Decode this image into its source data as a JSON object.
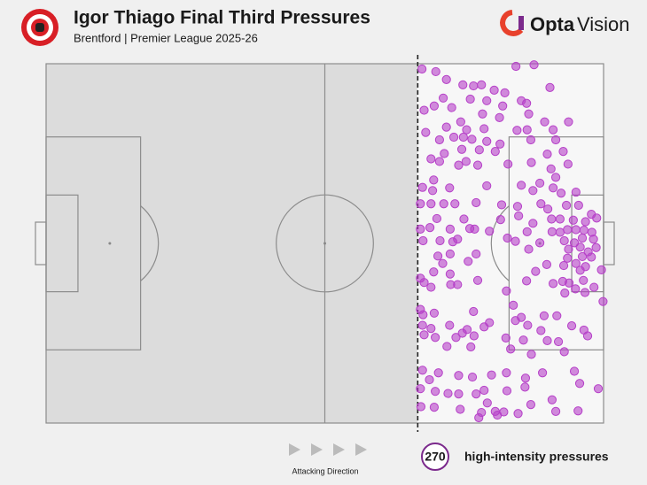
{
  "chart_data": {
    "type": "scatter",
    "title": "Igor Thiago Final Third Pressures",
    "subtitle": "Brentford | Premier League 2025-26",
    "brand": [
      "Opta",
      "Vision"
    ],
    "xlim": [
      0,
      105
    ],
    "ylim": [
      0,
      68
    ],
    "final_third_line": 70,
    "color": "#b640c8",
    "x": [
      70.8,
      73.4,
      88.5,
      91.9,
      75.4,
      78.5,
      80.5,
      82,
      84.4,
      86.4,
      94.9,
      74.8,
      79.9,
      83,
      89.5,
      90.5,
      73.1,
      71.2,
      76.4,
      86,
      78.1,
      82.2,
      85.4,
      90.9,
      98.4,
      93.9,
      75.4,
      79.2,
      82.5,
      88.7,
      90.6,
      95.5,
      71.5,
      74.1,
      76.8,
      78.6,
      80.2,
      83,
      85.5,
      91.3,
      96,
      78.3,
      81.6,
      84.6,
      94.4,
      97.4,
      98.3,
      72.5,
      74.1,
      75,
      77.7,
      79.1,
      81.3,
      87,
      91.4,
      95.1,
      73,
      70.9,
      72.8,
      76,
      83,
      89.5,
      93,
      96,
      95.5,
      91.7,
      97,
      99.8,
      70.5,
      72.5,
      74.9,
      77,
      81,
      85.8,
      88.8,
      93.2,
      94.5,
      98,
      100.3,
      102.7,
      73.6,
      78.7,
      85.6,
      89,
      91.7,
      95.2,
      96.8,
      99.3,
      101.6,
      103.7,
      70.5,
      72.3,
      76.1,
      79.8,
      80.7,
      83.5,
      90.6,
      95.3,
      96.8,
      98.2,
      99.8,
      101.3,
      102.8,
      71,
      74.2,
      76.6,
      77.5,
      86.9,
      88.4,
      93,
      97.6,
      99.5,
      101,
      103.1,
      81,
      76.1,
      73.8,
      90.9,
      98.4,
      100.6,
      102.1,
      103.6,
      98.2,
      99.8,
      101,
      102.7,
      74.7,
      79.5,
      94.3,
      97.5,
      100.6,
      101.6,
      104.6,
      92.2,
      70.5,
      73,
      76.1,
      71.2,
      72.5,
      76.2,
      77.5,
      81.3,
      90.5,
      95.5,
      97.3,
      98.5,
      101.2,
      103.2,
      86.7,
      97.7,
      99.7,
      101.5,
      104.9,
      88,
      70.5,
      71,
      73.1,
      80.5,
      89.5,
      93.8,
      96.2,
      70.9,
      72.5,
      76,
      79.3,
      82.5,
      83.5,
      88.4,
      90.7,
      93.2,
      99,
      101.3,
      71.2,
      73.3,
      77.2,
      78.4,
      80.6,
      86.6,
      89.9,
      94.4,
      96.5,
      102,
      75.5,
      80,
      87.5,
      91.4,
      97.6,
      70.9,
      73.9,
      72.2,
      77.7,
      80.3,
      83.9,
      86.7,
      90.3,
      93.5,
      99.5,
      70.5,
      73.3,
      75.7,
      77.7,
      81,
      82.5,
      86.8,
      90.2,
      100.5,
      104,
      70.6,
      73.1,
      78,
      82,
      83.1,
      84.6,
      86.2,
      88.9,
      91.3,
      95.3,
      96,
      100.2,
      81.5,
      85
    ],
    "values": [
      1,
      1.5,
      0.5,
      0.2,
      3,
      4,
      4.2,
      4,
      5,
      5.5,
      4.5,
      6.5,
      6.7,
      7,
      7,
      7.5,
      8,
      8.8,
      8.3,
      8,
      11,
      9.5,
      10.2,
      9.5,
      11,
      11,
      12,
      12.5,
      12.3,
      12.6,
      12.5,
      12.5,
      13,
      14.4,
      13.9,
      13.9,
      14.3,
      14.7,
      15.2,
      14.4,
      14.4,
      16.2,
      16.3,
      16.6,
      17.1,
      16.6,
      19,
      18,
      18.5,
      17,
      19.2,
      18.5,
      19.2,
      19,
      18.7,
      19.9,
      22,
      23.4,
      24,
      23.5,
      23.1,
      23,
      22.6,
      21.5,
      23.5,
      24,
      24.5,
      24.3,
      26.5,
      26.5,
      26.5,
      26.5,
      26.3,
      26.7,
      27,
      26.5,
      27.5,
      26.8,
      26.8,
      28.5,
      29.3,
      29.4,
      29.5,
      28.8,
      30.2,
      29.4,
      29.4,
      29.6,
      29.9,
      29.2,
      31.3,
      31,
      31.3,
      31.2,
      31.3,
      31.7,
      31.8,
      31.8,
      31.9,
      31.4,
      31.4,
      31.5,
      31.9,
      33.5,
      33.5,
      33.7,
      33.2,
      33,
      33.6,
      33.9,
      33.5,
      33.9,
      33,
      33.2,
      36,
      36,
      36.4,
      35.1,
      35.1,
      34.7,
      35.6,
      34.8,
      36.8,
      37.8,
      36.5,
      36.6,
      37.8,
      37.4,
      38,
      38.2,
      39.1,
      38.4,
      39,
      39.3,
      40.6,
      39.4,
      39.8,
      41.4,
      42.3,
      41.8,
      41.8,
      41,
      41.1,
      41.6,
      41.2,
      41.5,
      41,
      42.3,
      43,
      43.4,
      42.6,
      43.3,
      45,
      45.7,
      46.5,
      47.5,
      47.2,
      46.9,
      48,
      47.7,
      47.7,
      49.5,
      50.1,
      49.5,
      50.3,
      49.8,
      49,
      48.6,
      49.5,
      50.5,
      49.6,
      50.4,
      51.3,
      51.8,
      51.8,
      51,
      51.5,
      51.9,
      52.3,
      52.4,
      52.6,
      51.5,
      53.5,
      53.6,
      54,
      55,
      54.5,
      58,
      58.5,
      59.8,
      59,
      59.3,
      58.9,
      58.5,
      59.5,
      58.5,
      58.2,
      61.5,
      62,
      62.4,
      62.5,
      62.5,
      61.8,
      61.9,
      61.2,
      60.5,
      61.5,
      64.9,
      65,
      65.4,
      66,
      64.2,
      65.8,
      65.9,
      66.2,
      64.5,
      63.6,
      65.8,
      65.7,
      67,
      66.5
    ],
    "total": 270,
    "total_label": "high-intensity pressures",
    "direction_label": "Attacking Direction"
  }
}
